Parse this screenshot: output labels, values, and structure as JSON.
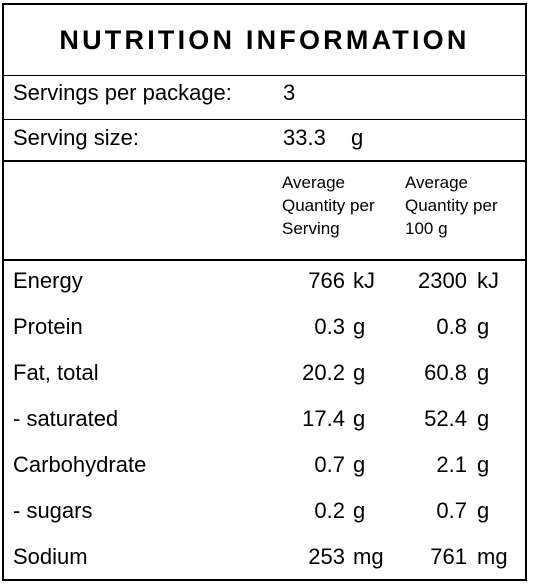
{
  "title": "NUTRITION INFORMATION",
  "servings_per_package": {
    "label": "Servings per package:",
    "value": "3"
  },
  "serving_size": {
    "label": "Serving size:",
    "value": "33.3",
    "unit": "g"
  },
  "column_headers": {
    "per_serving": [
      "Average",
      "Quantity per",
      "Serving"
    ],
    "per_100g": [
      "Average",
      "Quantity per",
      "100 g"
    ]
  },
  "rows": [
    {
      "name": "Energy",
      "serving": "766",
      "serving_unit": "kJ",
      "per100": "2300",
      "per100_unit": "kJ"
    },
    {
      "name": "Protein",
      "serving": "0.3",
      "serving_unit": "g",
      "per100": "0.8",
      "per100_unit": "g"
    },
    {
      "name": "Fat, total",
      "serving": "20.2",
      "serving_unit": "g",
      "per100": "60.8",
      "per100_unit": "g"
    },
    {
      "name": "- saturated",
      "serving": "17.4",
      "serving_unit": "g",
      "per100": "52.4",
      "per100_unit": "g"
    },
    {
      "name": "Carbohydrate",
      "serving": "0.7",
      "serving_unit": "g",
      "per100": "2.1",
      "per100_unit": "g"
    },
    {
      "name": "- sugars",
      "serving": "0.2",
      "serving_unit": "g",
      "per100": "0.7",
      "per100_unit": "g"
    },
    {
      "name": "Sodium",
      "serving": "253",
      "serving_unit": "mg",
      "per100": "761",
      "per100_unit": "mg"
    }
  ]
}
